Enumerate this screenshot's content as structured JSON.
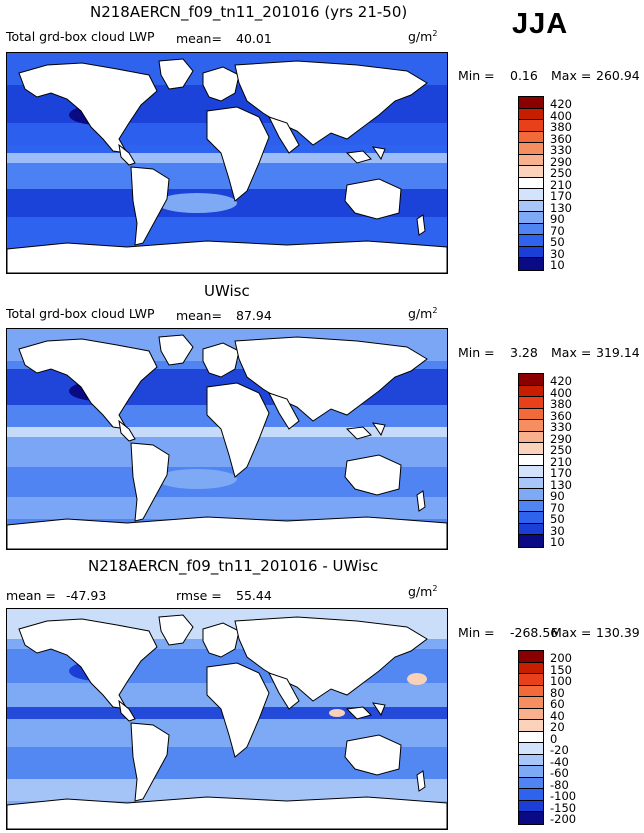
{
  "season": "JJA",
  "units_base": "g/m",
  "units_exp": "2",
  "colors": {
    "dark_navy": "#0a0a85",
    "deep_blue": "#1b3fd6",
    "blue": "#2f63ee",
    "mid_blue": "#4f84f2",
    "light_blue": "#7eaaf5",
    "pale_blue": "#a9c6f8",
    "very_pale": "#d3e3fb",
    "land": "#ffffff",
    "peach": "#f8d1b8",
    "dark_red": "#8a0000"
  },
  "panels": [
    {
      "title": "N218AERCN_f09_tn11_201016 (yrs 21-50)",
      "field": "Total grd-box cloud LWP",
      "mean_label": "mean=",
      "mean_value": "40.01",
      "min_label": "Min =",
      "min_value": "0.16",
      "max_label": "Max =",
      "max_value": "260.94",
      "levels": [
        "420",
        "400",
        "380",
        "360",
        "330",
        "290",
        "250",
        "210",
        "170",
        "130",
        "90",
        "70",
        "50",
        "30",
        "10"
      ],
      "level_colors": [
        "#8a0000",
        "#c81e00",
        "#e8401a",
        "#f26a3a",
        "#f58e60",
        "#f8b08e",
        "#fbd3bd",
        "#ffffff",
        "#d3e3fb",
        "#a9c6f8",
        "#7eaaf5",
        "#4f84f2",
        "#2f63ee",
        "#1b3fd6",
        "#0a0a85"
      ]
    },
    {
      "title": "UWisc",
      "field": "Total grd-box cloud LWP",
      "mean_label": "mean=",
      "mean_value": "87.94",
      "min_label": "Min =",
      "min_value": "3.28",
      "max_label": "Max =",
      "max_value": "319.14",
      "levels": [
        "420",
        "400",
        "380",
        "360",
        "330",
        "290",
        "250",
        "210",
        "170",
        "130",
        "90",
        "70",
        "50",
        "30",
        "10"
      ],
      "level_colors": [
        "#8a0000",
        "#c81e00",
        "#e8401a",
        "#f26a3a",
        "#f58e60",
        "#f8b08e",
        "#fbd3bd",
        "#ffffff",
        "#d3e3fb",
        "#a9c6f8",
        "#7eaaf5",
        "#4f84f2",
        "#2f63ee",
        "#1b3fd6",
        "#0a0a85"
      ]
    },
    {
      "title": "N218AERCN_f09_tn11_201016 - UWisc",
      "mean_label": "mean =",
      "mean_value": "-47.93",
      "rmse_label": "rmse =",
      "rmse_value": "55.44",
      "min_label": "Min =",
      "min_value": "-268.56",
      "max_label": "Max =",
      "max_value": "130.39",
      "levels": [
        "200",
        "150",
        "100",
        "80",
        "60",
        "40",
        "20",
        "0",
        "-20",
        "-40",
        "-60",
        "-80",
        "-100",
        "-150",
        "-200"
      ],
      "level_colors": [
        "#8a0000",
        "#c81e00",
        "#e8401a",
        "#f26a3a",
        "#f58e60",
        "#f8b08e",
        "#fbd3bd",
        "#ffffff",
        "#d3e3fb",
        "#a9c6f8",
        "#7eaaf5",
        "#4f84f2",
        "#2f63ee",
        "#1b3fd6",
        "#0a0a85"
      ]
    }
  ]
}
